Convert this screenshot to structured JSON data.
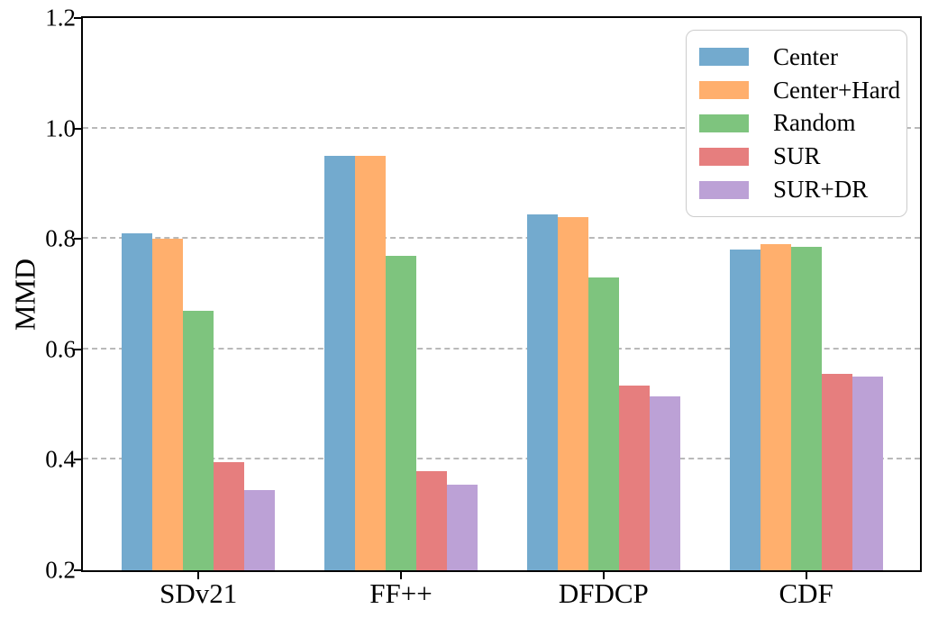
{
  "chart_data": {
    "type": "bar",
    "title": "",
    "xlabel": "",
    "ylabel": "MMD",
    "ylim": [
      0.2,
      1.2
    ],
    "ytick_values": [
      0.2,
      0.4,
      0.6,
      0.8,
      1.0,
      1.2
    ],
    "ytick_labels": [
      "0.2",
      "0.4",
      "0.6",
      "0.8",
      "1.0",
      "1.2"
    ],
    "gridline_values": [
      0.4,
      0.6,
      0.8,
      1.0
    ],
    "grid": "horizontal dashed",
    "legend_position": "upper right",
    "categories": [
      "SDv21",
      "FF++",
      "DFDCP",
      "CDF"
    ],
    "series": [
      {
        "name": "Center",
        "color": "#73AACE",
        "values": [
          0.81,
          0.95,
          0.845,
          0.78
        ]
      },
      {
        "name": "Center+Hard",
        "color": "#FFAF6D",
        "values": [
          0.8,
          0.95,
          0.84,
          0.79
        ]
      },
      {
        "name": "Random",
        "color": "#7EC47E",
        "values": [
          0.67,
          0.77,
          0.73,
          0.785
        ]
      },
      {
        "name": "SUR",
        "color": "#E67E7E",
        "values": [
          0.395,
          0.38,
          0.535,
          0.555
        ]
      },
      {
        "name": "SUR+DR",
        "color": "#BCA1D6",
        "values": [
          0.345,
          0.355,
          0.515,
          0.55
        ]
      }
    ],
    "colors": {
      "axis": "#000000",
      "grid": "#b9b9b9",
      "legend_border": "#cccccc",
      "background": "#ffffff",
      "text": "#000000"
    }
  }
}
